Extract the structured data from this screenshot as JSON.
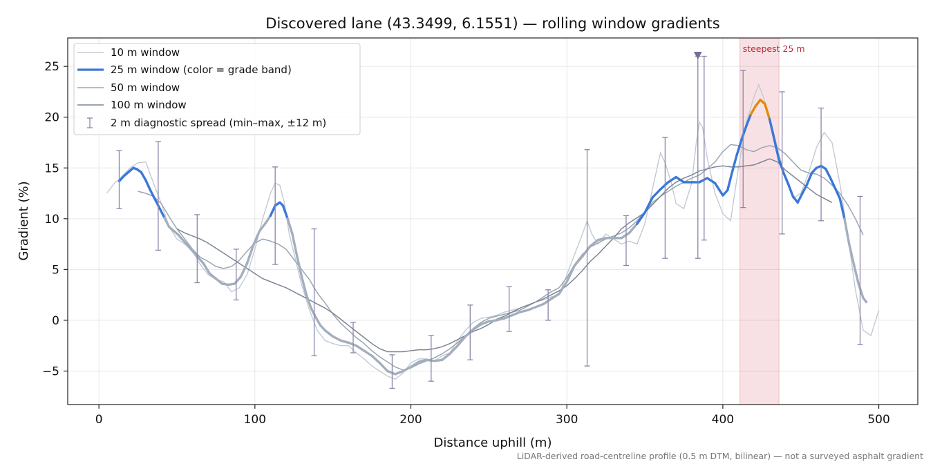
{
  "chart_data": {
    "type": "line",
    "title": "Discovered lane (43.3499, 6.1551) — rolling window gradients",
    "xlabel": "Distance uphill (m)",
    "ylabel": "Gradient (%)",
    "xlim": [
      -20,
      525
    ],
    "ylim": [
      -8.3,
      27.8
    ],
    "xticks": [
      0,
      100,
      200,
      300,
      400,
      500
    ],
    "yticks": [
      -5,
      0,
      5,
      10,
      15,
      20,
      25
    ],
    "xtick_labels": [
      "0",
      "100",
      "200",
      "300",
      "400",
      "500"
    ],
    "ytick_labels": [
      "−5",
      "0",
      "5",
      "10",
      "15",
      "20",
      "25"
    ],
    "grid": true,
    "legend_position": "top-left",
    "footnote": "LiDAR-derived road-centreline profile (0.5 m DTM, bilinear) — not a surveyed asphalt gradient",
    "highlight": {
      "x0": 411,
      "x1": 436,
      "label": "steepest 25 m",
      "color": "#c0283a"
    },
    "marker": {
      "x": 384,
      "y": 26.1,
      "color": "#7a6c9a"
    },
    "series": [
      {
        "name": "10 m window",
        "color": "#c3c9d3",
        "x": [
          5,
          10,
          15,
          20,
          25,
          30,
          35,
          40,
          45,
          50,
          55,
          60,
          65,
          70,
          75,
          80,
          85,
          90,
          95,
          100,
          105,
          110,
          113,
          116,
          119,
          122,
          126,
          130,
          135,
          140,
          145,
          150,
          155,
          160,
          165,
          170,
          175,
          180,
          185,
          190,
          195,
          200,
          205,
          210,
          215,
          220,
          225,
          230,
          235,
          240,
          245,
          250,
          255,
          260,
          265,
          270,
          275,
          280,
          285,
          290,
          295,
          300,
          305,
          310,
          313,
          316,
          320,
          325,
          330,
          335,
          340,
          345,
          350,
          355,
          360,
          363,
          367,
          370,
          375,
          380,
          383,
          385,
          387,
          390,
          395,
          400,
          405,
          410,
          415,
          420,
          423,
          426,
          430,
          435,
          440,
          445,
          450,
          455,
          460,
          465,
          470,
          475,
          480,
          485,
          490,
          495,
          500
        ],
        "values": [
          12.5,
          13.5,
          14.2,
          15.0,
          15.5,
          15.6,
          13.5,
          11.5,
          9.2,
          8.0,
          7.5,
          6.8,
          5.5,
          4.5,
          4.0,
          3.8,
          2.8,
          3.2,
          4.5,
          7.0,
          10.0,
          12.5,
          13.5,
          13.3,
          11.5,
          8.5,
          6.0,
          3.5,
          1.0,
          -1.0,
          -2.0,
          -2.3,
          -2.5,
          -2.5,
          -3.2,
          -3.8,
          -4.5,
          -5.0,
          -5.5,
          -5.8,
          -5.2,
          -4.2,
          -3.8,
          -3.8,
          -4.0,
          -3.5,
          -3.2,
          -2.0,
          -1.0,
          -0.2,
          0.2,
          0.3,
          0.5,
          0.8,
          1.0,
          1.2,
          1.5,
          1.8,
          2.0,
          2.3,
          2.5,
          4.5,
          6.5,
          8.5,
          9.8,
          8.5,
          7.5,
          8.5,
          8.0,
          7.5,
          7.8,
          7.5,
          9.5,
          13.0,
          16.5,
          15.5,
          13.5,
          11.5,
          11.0,
          13.5,
          17.5,
          19.5,
          19.0,
          16.0,
          12.5,
          10.5,
          9.8,
          15.0,
          19.5,
          22.0,
          23.2,
          22.0,
          20.0,
          17.0,
          14.0,
          12.0,
          12.5,
          14.5,
          17.0,
          18.5,
          17.5,
          13.5,
          8.5,
          3.0,
          -1.0,
          -1.5,
          1.0
        ]
      },
      {
        "name": "25 m window (color = grade band)",
        "color": "#3a78d8",
        "band_colors": [
          "#3a78d8",
          "#e08a0a",
          "#a3aebd"
        ],
        "x": [
          13,
          16,
          19,
          22,
          24,
          27,
          30,
          33,
          36,
          39,
          42,
          45,
          48,
          51,
          55,
          59,
          63,
          67,
          71,
          75,
          79,
          83,
          87,
          91,
          95,
          99,
          103,
          107,
          110,
          113,
          116,
          118,
          121,
          124,
          127,
          130,
          133,
          136,
          139,
          142,
          145,
          150,
          155,
          160,
          165,
          170,
          175,
          180,
          185,
          190,
          195,
          200,
          205,
          210,
          215,
          220,
          225,
          230,
          235,
          240,
          245,
          250,
          255,
          260,
          265,
          270,
          275,
          280,
          285,
          290,
          295,
          300,
          305,
          310,
          315,
          320,
          325,
          330,
          335,
          340,
          345,
          350,
          355,
          360,
          365,
          370,
          375,
          380,
          385,
          390,
          395,
          400,
          403,
          406,
          409,
          412,
          415,
          418,
          421,
          424,
          427,
          430,
          433,
          436,
          439,
          442,
          445,
          448,
          451,
          454,
          457,
          460,
          463,
          466,
          469,
          472,
          475,
          478,
          481,
          484,
          487,
          490,
          492
        ],
        "values": [
          13.7,
          14.2,
          14.6,
          15.0,
          14.9,
          14.6,
          13.8,
          12.8,
          11.9,
          11.0,
          10.1,
          9.2,
          8.8,
          8.4,
          7.7,
          7.0,
          6.3,
          5.6,
          4.6,
          4.1,
          3.6,
          3.5,
          3.6,
          4.3,
          5.6,
          7.4,
          8.8,
          9.6,
          10.3,
          11.3,
          11.6,
          11.3,
          10.0,
          8.5,
          6.3,
          4.3,
          2.5,
          1.2,
          0.3,
          -0.5,
          -1.0,
          -1.6,
          -2.0,
          -2.2,
          -2.5,
          -3.0,
          -3.5,
          -4.2,
          -5.0,
          -5.3,
          -5.0,
          -4.6,
          -4.1,
          -3.9,
          -4.0,
          -3.9,
          -3.3,
          -2.5,
          -1.6,
          -0.9,
          -0.4,
          -0.1,
          0.0,
          0.2,
          0.5,
          0.8,
          1.0,
          1.3,
          1.6,
          2.1,
          2.6,
          3.8,
          5.4,
          6.3,
          7.3,
          7.9,
          8.1,
          8.1,
          8.1,
          8.6,
          9.5,
          10.6,
          12.1,
          12.9,
          13.6,
          14.1,
          13.6,
          13.6,
          13.6,
          14.0,
          13.5,
          12.3,
          12.8,
          14.6,
          16.3,
          17.8,
          19.1,
          20.3,
          21.1,
          21.7,
          21.3,
          19.8,
          17.8,
          15.8,
          14.5,
          13.4,
          12.2,
          11.6,
          12.5,
          13.4,
          14.5,
          15.0,
          15.2,
          14.9,
          14.0,
          13.0,
          12.0,
          10.0,
          7.5,
          5.5,
          3.6,
          2.2,
          1.8
        ]
      },
      {
        "name": "50 m window",
        "color": "#9aa5b4",
        "x": [
          25,
          30,
          35,
          40,
          45,
          50,
          55,
          60,
          65,
          70,
          75,
          80,
          85,
          90,
          95,
          100,
          105,
          110,
          115,
          120,
          125,
          130,
          135,
          140,
          145,
          150,
          155,
          160,
          165,
          170,
          175,
          180,
          185,
          190,
          195,
          200,
          205,
          210,
          215,
          220,
          225,
          230,
          235,
          240,
          245,
          250,
          255,
          260,
          265,
          270,
          275,
          280,
          285,
          290,
          295,
          300,
          305,
          310,
          315,
          320,
          325,
          330,
          335,
          340,
          345,
          350,
          355,
          360,
          365,
          370,
          375,
          380,
          385,
          390,
          395,
          400,
          405,
          410,
          415,
          420,
          425,
          430,
          435,
          440,
          445,
          450,
          455,
          460,
          465,
          470,
          475,
          480,
          485,
          490
        ],
        "values": [
          12.7,
          12.5,
          12.2,
          11.5,
          10.2,
          9.0,
          8.0,
          7.0,
          6.2,
          5.8,
          5.3,
          5.1,
          5.3,
          5.9,
          6.8,
          7.6,
          8.0,
          7.8,
          7.5,
          7.0,
          6.0,
          5.0,
          4.0,
          2.7,
          1.7,
          0.6,
          -0.3,
          -1.0,
          -1.7,
          -2.3,
          -3.0,
          -3.6,
          -4.1,
          -4.6,
          -4.9,
          -4.7,
          -4.3,
          -4.0,
          -3.7,
          -3.3,
          -2.8,
          -2.2,
          -1.5,
          -0.8,
          -0.2,
          0.2,
          0.4,
          0.6,
          0.8,
          1.0,
          1.4,
          1.8,
          2.3,
          2.8,
          3.2,
          4.2,
          5.5,
          6.5,
          7.2,
          7.6,
          8.0,
          8.3,
          8.6,
          9.1,
          9.8,
          10.7,
          11.6,
          12.2,
          12.7,
          13.2,
          13.6,
          14.0,
          14.3,
          14.9,
          15.6,
          16.6,
          17.3,
          17.2,
          16.8,
          16.6,
          17.0,
          17.2,
          17.0,
          16.4,
          15.6,
          14.8,
          14.5,
          14.4,
          14.0,
          13.3,
          12.5,
          11.4,
          10.0,
          8.4
        ]
      },
      {
        "name": "100 m window",
        "color": "#7c8594",
        "x": [
          50,
          55,
          60,
          65,
          70,
          75,
          80,
          85,
          90,
          95,
          100,
          105,
          110,
          115,
          120,
          125,
          130,
          135,
          140,
          145,
          150,
          155,
          160,
          165,
          170,
          175,
          180,
          185,
          190,
          195,
          200,
          205,
          210,
          215,
          220,
          225,
          230,
          235,
          240,
          245,
          250,
          255,
          260,
          265,
          270,
          275,
          280,
          285,
          290,
          295,
          300,
          305,
          310,
          315,
          320,
          325,
          330,
          335,
          340,
          345,
          350,
          355,
          360,
          365,
          370,
          375,
          380,
          385,
          390,
          395,
          400,
          405,
          410,
          415,
          420,
          425,
          430,
          435,
          440,
          445,
          450,
          455,
          460,
          465,
          470
        ],
        "values": [
          9.0,
          8.6,
          8.3,
          8.0,
          7.6,
          7.1,
          6.6,
          6.1,
          5.6,
          5.1,
          4.6,
          4.1,
          3.8,
          3.5,
          3.2,
          2.8,
          2.4,
          2.0,
          1.6,
          1.2,
          0.7,
          0.1,
          -0.5,
          -1.1,
          -1.7,
          -2.3,
          -2.8,
          -3.1,
          -3.1,
          -3.1,
          -3.0,
          -2.9,
          -2.9,
          -2.8,
          -2.6,
          -2.3,
          -1.9,
          -1.5,
          -1.1,
          -0.8,
          -0.4,
          0.1,
          0.4,
          0.8,
          1.2,
          1.5,
          1.8,
          2.1,
          2.5,
          2.9,
          3.4,
          4.1,
          4.9,
          5.8,
          6.5,
          7.3,
          8.1,
          9.0,
          9.6,
          10.1,
          10.6,
          11.4,
          12.2,
          13.0,
          13.6,
          14.0,
          14.3,
          14.7,
          14.9,
          15.1,
          15.2,
          15.1,
          15.1,
          15.2,
          15.3,
          15.6,
          15.9,
          15.6,
          14.8,
          14.2,
          13.6,
          13.0,
          12.4,
          12.0,
          11.6
        ]
      }
    ],
    "spread": {
      "name": "2 m diagnostic spread (min–max, ±12 m)",
      "color": "#8a84a8",
      "points": [
        {
          "x": 13,
          "min": 11.0,
          "max": 16.7
        },
        {
          "x": 38,
          "min": 6.9,
          "max": 17.6
        },
        {
          "x": 63,
          "min": 3.7,
          "max": 10.4
        },
        {
          "x": 88,
          "min": 2.0,
          "max": 7.0
        },
        {
          "x": 113,
          "min": 5.5,
          "max": 15.1
        },
        {
          "x": 138,
          "min": -3.5,
          "max": 9.0
        },
        {
          "x": 163,
          "min": -3.2,
          "max": -0.2
        },
        {
          "x": 188,
          "min": -6.7,
          "max": -3.4
        },
        {
          "x": 213,
          "min": -6.0,
          "max": -1.5
        },
        {
          "x": 238,
          "min": -3.9,
          "max": 1.5
        },
        {
          "x": 263,
          "min": -1.1,
          "max": 3.3
        },
        {
          "x": 288,
          "min": 0.0,
          "max": 3.0
        },
        {
          "x": 313,
          "min": -4.5,
          "max": 16.8
        },
        {
          "x": 338,
          "min": 5.4,
          "max": 10.3
        },
        {
          "x": 363,
          "min": 6.1,
          "max": 18.0
        },
        {
          "x": 384,
          "min": 6.1,
          "max": 26.0
        },
        {
          "x": 388,
          "min": 7.9,
          "max": 26.0
        },
        {
          "x": 413,
          "min": 11.1,
          "max": 24.6
        },
        {
          "x": 438,
          "min": 8.5,
          "max": 22.5
        },
        {
          "x": 463,
          "min": 9.8,
          "max": 20.9
        },
        {
          "x": 488,
          "min": -2.4,
          "max": 12.2
        }
      ]
    }
  }
}
